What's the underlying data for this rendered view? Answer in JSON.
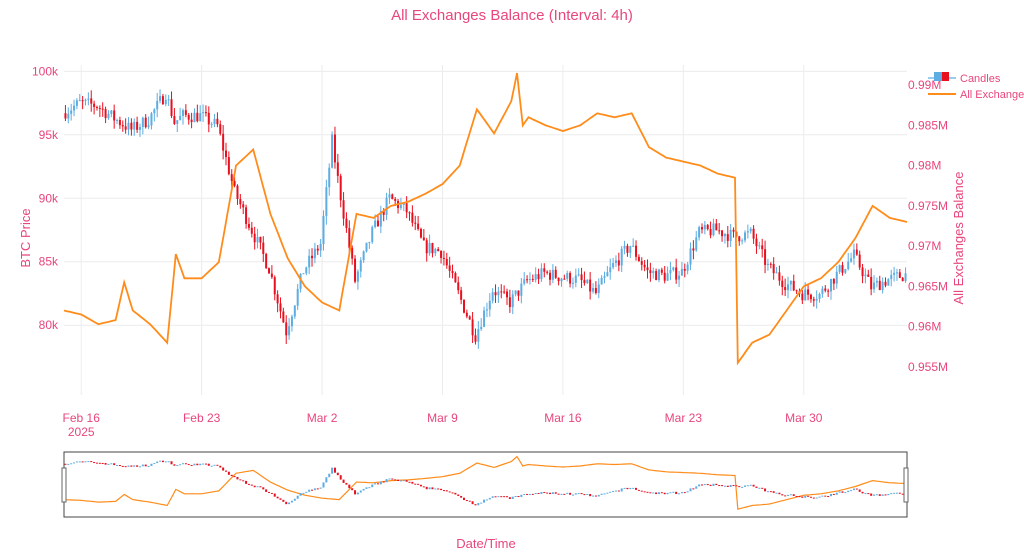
{
  "chart_data": {
    "type": "candlestick+line",
    "title": "All Exchanges Balance (Interval: 4h)",
    "xlabel": "Date/Time",
    "ylabel_left": "BTC Price",
    "ylabel_right": "All Exchanges Balance",
    "x_ticks": [
      {
        "date": "2025-02-16",
        "label": "Feb 16",
        "sublabel": "2025"
      },
      {
        "date": "2025-02-23",
        "label": "Feb 23",
        "sublabel": ""
      },
      {
        "date": "2025-03-02",
        "label": "Mar 2",
        "sublabel": ""
      },
      {
        "date": "2025-03-09",
        "label": "Mar 9",
        "sublabel": ""
      },
      {
        "date": "2025-03-16",
        "label": "Mar 16",
        "sublabel": ""
      },
      {
        "date": "2025-03-23",
        "label": "Mar 23",
        "sublabel": ""
      },
      {
        "date": "2025-03-30",
        "label": "Mar 30",
        "sublabel": ""
      }
    ],
    "xlim": [
      "2025-02-15",
      "2025-04-05"
    ],
    "y_left": {
      "lim": [
        74500,
        100500
      ],
      "ticks": [
        80000,
        85000,
        90000,
        95000,
        100000
      ],
      "tick_labels": [
        "80k",
        "85k",
        "90k",
        "95k",
        "100k"
      ]
    },
    "y_right": {
      "lim": [
        0.9515,
        0.9925
      ],
      "ticks": [
        0.955,
        0.96,
        0.965,
        0.97,
        0.975,
        0.98,
        0.985,
        0.99
      ],
      "tick_labels": [
        "0.955M",
        "0.96M",
        "0.965M",
        "0.97M",
        "0.975M",
        "0.98M",
        "0.985M",
        "0.99M"
      ]
    },
    "legend": {
      "placement": "top-right",
      "entries": [
        "Candles",
        "All Exchanges Balance"
      ]
    },
    "colors": {
      "up": "#5dade2",
      "down": "#e8101f",
      "balance": "#ff8c1a",
      "text": "#e8467c"
    },
    "price_anchors": [
      [
        "2025-02-15",
        96700
      ],
      [
        "2025-02-16",
        97500
      ],
      [
        "2025-02-17",
        97300
      ],
      [
        "2025-02-18",
        96300
      ],
      [
        "2025-02-19",
        95400
      ],
      [
        "2025-02-20",
        96200
      ],
      [
        "2025-02-21",
        98300
      ],
      [
        "2025-02-21T12",
        96000
      ],
      [
        "2025-02-22",
        96500
      ],
      [
        "2025-02-23",
        96500
      ],
      [
        "2025-02-24",
        95700
      ],
      [
        "2025-02-25",
        90500
      ],
      [
        "2025-02-26",
        87500
      ],
      [
        "2025-02-27",
        84500
      ],
      [
        "2025-02-28",
        79500
      ],
      [
        "2025-03-01",
        84300
      ],
      [
        "2025-03-02",
        86400
      ],
      [
        "2025-03-02T16",
        94500
      ],
      [
        "2025-03-03",
        91500
      ],
      [
        "2025-03-04",
        83500
      ],
      [
        "2025-03-05",
        87300
      ],
      [
        "2025-03-06",
        90000
      ],
      [
        "2025-03-07",
        89000
      ],
      [
        "2025-03-08",
        86200
      ],
      [
        "2025-03-09",
        85800
      ],
      [
        "2025-03-10",
        82500
      ],
      [
        "2025-03-11",
        79200
      ],
      [
        "2025-03-12",
        82800
      ],
      [
        "2025-03-13",
        81800
      ],
      [
        "2025-03-14",
        83500
      ],
      [
        "2025-03-15",
        84100
      ],
      [
        "2025-03-16",
        83800
      ],
      [
        "2025-03-17",
        83600
      ],
      [
        "2025-03-18",
        82500
      ],
      [
        "2025-03-19",
        84700
      ],
      [
        "2025-03-20",
        86300
      ],
      [
        "2025-03-21",
        84200
      ],
      [
        "2025-03-22",
        83900
      ],
      [
        "2025-03-23",
        84200
      ],
      [
        "2025-03-24",
        87300
      ],
      [
        "2025-03-25",
        87500
      ],
      [
        "2025-03-26",
        87000
      ],
      [
        "2025-03-27",
        87200
      ],
      [
        "2025-03-28",
        84600
      ],
      [
        "2025-03-29",
        83300
      ],
      [
        "2025-03-30",
        82500
      ],
      [
        "2025-03-31",
        82400
      ],
      [
        "2025-04-01",
        84000
      ],
      [
        "2025-04-02",
        85500
      ],
      [
        "2025-04-03",
        83000
      ],
      [
        "2025-04-04",
        83600
      ],
      [
        "2025-04-05",
        84000
      ]
    ],
    "balance_anchors": [
      [
        "2025-02-15",
        0.962
      ],
      [
        "2025-02-16",
        0.9615
      ],
      [
        "2025-02-17",
        0.9603
      ],
      [
        "2025-02-18",
        0.9608
      ],
      [
        "2025-02-18T12",
        0.9655
      ],
      [
        "2025-02-19",
        0.962
      ],
      [
        "2025-02-20",
        0.9603
      ],
      [
        "2025-02-21",
        0.958
      ],
      [
        "2025-02-21T12",
        0.969
      ],
      [
        "2025-02-22",
        0.966
      ],
      [
        "2025-02-23",
        0.966
      ],
      [
        "2025-02-24",
        0.968
      ],
      [
        "2025-02-25",
        0.98
      ],
      [
        "2025-02-26",
        0.982
      ],
      [
        "2025-02-27",
        0.974
      ],
      [
        "2025-02-28",
        0.9685
      ],
      [
        "2025-03-01",
        0.965
      ],
      [
        "2025-03-02",
        0.963
      ],
      [
        "2025-03-03",
        0.962
      ],
      [
        "2025-03-04",
        0.974
      ],
      [
        "2025-03-05",
        0.9735
      ],
      [
        "2025-03-06",
        0.975
      ],
      [
        "2025-03-07",
        0.9755
      ],
      [
        "2025-03-08",
        0.9765
      ],
      [
        "2025-03-09",
        0.9777
      ],
      [
        "2025-03-10",
        0.98
      ],
      [
        "2025-03-11",
        0.987
      ],
      [
        "2025-03-12",
        0.984
      ],
      [
        "2025-03-13",
        0.988
      ],
      [
        "2025-03-13T08",
        0.9915
      ],
      [
        "2025-03-13T16",
        0.985
      ],
      [
        "2025-03-14",
        0.986
      ],
      [
        "2025-03-15",
        0.985
      ],
      [
        "2025-03-16",
        0.9843
      ],
      [
        "2025-03-17",
        0.985
      ],
      [
        "2025-03-18",
        0.9865
      ],
      [
        "2025-03-19",
        0.986
      ],
      [
        "2025-03-20",
        0.9865
      ],
      [
        "2025-03-21",
        0.9823
      ],
      [
        "2025-03-22",
        0.981
      ],
      [
        "2025-03-23",
        0.9805
      ],
      [
        "2025-03-24",
        0.98
      ],
      [
        "2025-03-25",
        0.979
      ],
      [
        "2025-03-26",
        0.9785
      ],
      [
        "2025-03-26T04",
        0.9555
      ],
      [
        "2025-03-27",
        0.958
      ],
      [
        "2025-03-28",
        0.959
      ],
      [
        "2025-03-29",
        0.962
      ],
      [
        "2025-03-30",
        0.965
      ],
      [
        "2025-03-31",
        0.966
      ],
      [
        "2025-04-01",
        0.968
      ],
      [
        "2025-04-02",
        0.971
      ],
      [
        "2025-04-03",
        0.975
      ],
      [
        "2025-04-04",
        0.9735
      ],
      [
        "2025-04-05",
        0.973
      ]
    ]
  }
}
